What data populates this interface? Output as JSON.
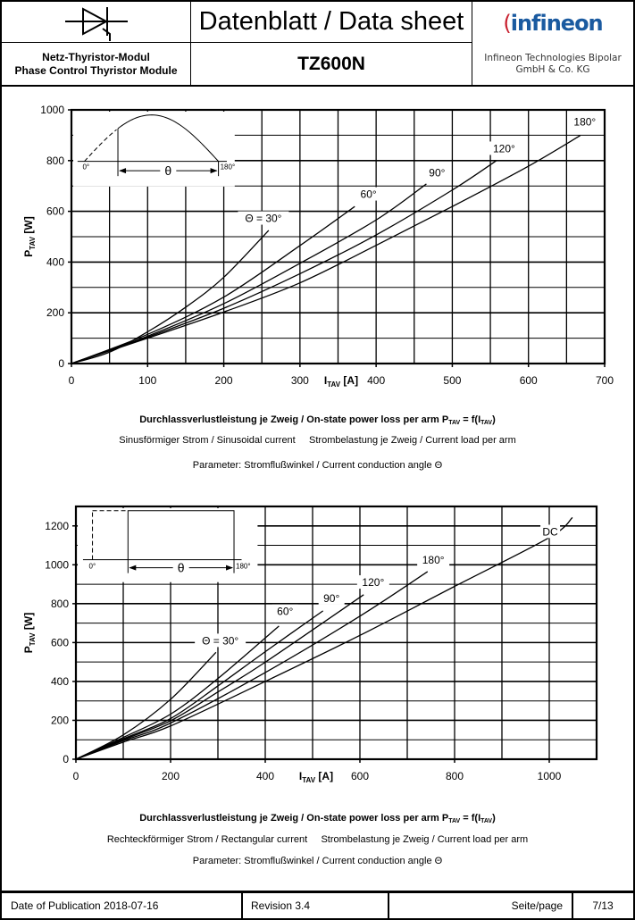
{
  "header": {
    "title": "Datenblatt / Data sheet",
    "module_de": "Netz-Thyristor-Modul",
    "module_en": "Phase Control Thyristor Module",
    "part_number": "TZ600N",
    "logo_text": "infineon",
    "company_line1": "Infineon Technologies Bipolar",
    "company_line2": "GmbH & Co. KG",
    "brand_color": "#1a5aa0"
  },
  "captions": [
    {
      "title": "Durchlassverlustleistung je Zweig / On-state power loss per arm P",
      "sub1": "TAV",
      "mid": " = f(I",
      "sub2": "TAV",
      "end": ")",
      "line2a": "Sinusförmiger Strom / Sinusoidal current",
      "line2b": "Strombelastung je Zweig / Current load per arm",
      "line3": "Parameter: Stromflußwinkel / Current conduction angle Θ"
    },
    {
      "title": "Durchlassverlustleistung je Zweig / On-state power loss per arm P",
      "sub1": "TAV",
      "mid": " = f(I",
      "sub2": "TAV",
      "end": ")",
      "line2a": "Rechteckförmiger Strom / Rectangular current",
      "line2b": "Strombelastung je Zweig / Current load per arm",
      "line3": "Parameter: Stromflußwinkel / Current conduction angle Θ"
    }
  ],
  "chart_data": [
    {
      "type": "line",
      "title": "On-state power loss per arm, sinusoidal current",
      "xlabel": {
        "main": "I",
        "sub": "TAV",
        "unit": " [A]"
      },
      "ylabel": {
        "main": "P",
        "sub": "TAV",
        "unit": " [W]"
      },
      "xlim": [
        0,
        700
      ],
      "ylim": [
        0,
        1000
      ],
      "xticks": [
        0,
        100,
        200,
        300,
        400,
        500,
        600,
        700
      ],
      "yticks": [
        0,
        200,
        400,
        600,
        800,
        1000
      ],
      "grid": true,
      "inset": {
        "type": "sine",
        "start_label": "0°",
        "end_label": "180°",
        "angle_label": "θ"
      },
      "series": [
        {
          "name": "30°",
          "label": "Θ = 30°",
          "label_at": [
            252,
            565
          ],
          "points": [
            [
              0,
              0
            ],
            [
              50,
              45
            ],
            [
              100,
              125
            ],
            [
              150,
              222
            ],
            [
              200,
              340
            ],
            [
              259,
              525
            ]
          ]
        },
        {
          "name": "60°",
          "label": "60°",
          "label_at": [
            390,
            660
          ],
          "points": [
            [
              0,
              0
            ],
            [
              100,
              115
            ],
            [
              200,
              262
            ],
            [
              300,
              465
            ],
            [
              372,
              619
            ]
          ]
        },
        {
          "name": "90°",
          "label": "90°",
          "label_at": [
            480,
            745
          ],
          "points": [
            [
              0,
              0
            ],
            [
              100,
              108
            ],
            [
              200,
              236
            ],
            [
              300,
              395
            ],
            [
              400,
              566
            ],
            [
              466,
              708
            ]
          ]
        },
        {
          "name": "120°",
          "label": "120°",
          "label_at": [
            568,
            840
          ],
          "points": [
            [
              0,
              0
            ],
            [
              100,
              104
            ],
            [
              200,
              218
            ],
            [
              300,
              354
            ],
            [
              400,
              507
            ],
            [
              500,
              684
            ],
            [
              558,
              800
            ]
          ]
        },
        {
          "name": "180°",
          "label": "180°",
          "label_at": [
            674,
            945
          ],
          "points": [
            [
              0,
              0
            ],
            [
              100,
              100
            ],
            [
              200,
              203
            ],
            [
              300,
              318
            ],
            [
              400,
              466
            ],
            [
              500,
              619
            ],
            [
              600,
              778
            ],
            [
              668,
              899
            ]
          ]
        }
      ]
    },
    {
      "type": "line",
      "title": "On-state power loss per arm, rectangular current",
      "xlabel": {
        "main": "I",
        "sub": "TAV",
        "unit": " [A]"
      },
      "ylabel": {
        "main": "P",
        "sub": "TAV",
        "unit": " [W]"
      },
      "xlim": [
        0,
        1100
      ],
      "ylim": [
        0,
        1300
      ],
      "xticks": [
        0,
        200,
        400,
        600,
        800,
        1000
      ],
      "yticks": [
        0,
        200,
        400,
        600,
        800,
        1000,
        1200
      ],
      "grid": true,
      "inset": {
        "type": "rect",
        "start_label": "0°",
        "end_label": "180°",
        "angle_label": "θ"
      },
      "series": [
        {
          "name": "30°",
          "label": "Θ = 30°",
          "label_at": [
            305,
            600
          ],
          "points": [
            [
              0,
              0
            ],
            [
              100,
              125
            ],
            [
              200,
              308
            ],
            [
              296,
              550
            ]
          ]
        },
        {
          "name": "60°",
          "label": "60°",
          "label_at": [
            442,
            750
          ],
          "points": [
            [
              0,
              0
            ],
            [
              100,
              112
            ],
            [
              200,
              232
            ],
            [
              300,
              415
            ],
            [
              429,
              685
            ]
          ]
        },
        {
          "name": "90°",
          "label": "90°",
          "label_at": [
            540,
            818
          ],
          "points": [
            [
              0,
              0
            ],
            [
              100,
              105
            ],
            [
              200,
              209
            ],
            [
              300,
              377
            ],
            [
              400,
              553
            ],
            [
              522,
              763
            ]
          ]
        },
        {
          "name": "120°",
          "label": "120°",
          "label_at": [
            628,
            900
          ],
          "points": [
            [
              0,
              0
            ],
            [
              100,
              100
            ],
            [
              200,
              198
            ],
            [
              300,
              346
            ],
            [
              400,
              499
            ],
            [
              608,
              846
            ]
          ]
        },
        {
          "name": "180°",
          "label": "180°",
          "label_at": [
            755,
            1015
          ],
          "points": [
            [
              0,
              0
            ],
            [
              100,
              95
            ],
            [
              200,
              186
            ],
            [
              400,
              446
            ],
            [
              600,
              736
            ],
            [
              743,
              965
            ]
          ]
        },
        {
          "name": "DC",
          "label": "DC",
          "label_at": [
            1002,
            1160
          ],
          "points": [
            [
              0,
              0
            ],
            [
              100,
              88
            ],
            [
              200,
              171
            ],
            [
              400,
              400
            ],
            [
              600,
              637
            ],
            [
              800,
              889
            ],
            [
              1000,
              1140
            ],
            [
              1049,
              1243
            ]
          ]
        }
      ]
    }
  ],
  "footer": {
    "date": "Date of Publication 2018-07-16",
    "revision": "Revision 3.4",
    "page_label": "Seite/page",
    "page": "7/13"
  }
}
